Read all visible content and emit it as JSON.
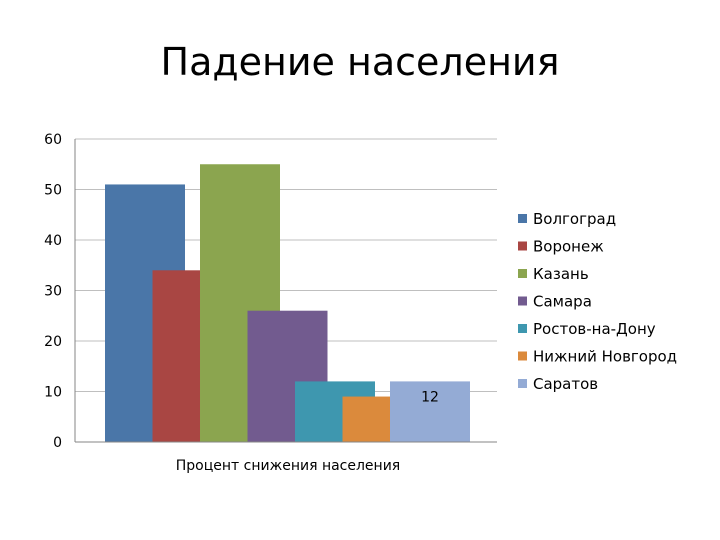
{
  "chart_data": {
    "type": "bar",
    "title": "Падение населения",
    "xlabel": "",
    "ylabel": "",
    "categories": [
      "Процент снижения населения"
    ],
    "series": [
      {
        "name": "Волгоград",
        "values": [
          51
        ],
        "color": "#4A76A8"
      },
      {
        "name": "Воронеж",
        "values": [
          34
        ],
        "color": "#A94643"
      },
      {
        "name": "Казань",
        "values": [
          55
        ],
        "color": "#8BA54F"
      },
      {
        "name": "Самара",
        "values": [
          26
        ],
        "color": "#725B8F"
      },
      {
        "name": "Ростов-на-Дону",
        "values": [
          12
        ],
        "color": "#3E97AF"
      },
      {
        "name": "Нижний Новгород",
        "values": [
          9
        ],
        "color": "#DB8A3C"
      },
      {
        "name": "Саратов",
        "values": [
          12
        ],
        "color": "#94ABD5",
        "data_label": "12"
      }
    ],
    "ylim": [
      0,
      60
    ],
    "yticks": [
      "0",
      "10",
      "20",
      "30",
      "40",
      "50",
      "60"
    ],
    "grid": true,
    "legend": "right"
  }
}
